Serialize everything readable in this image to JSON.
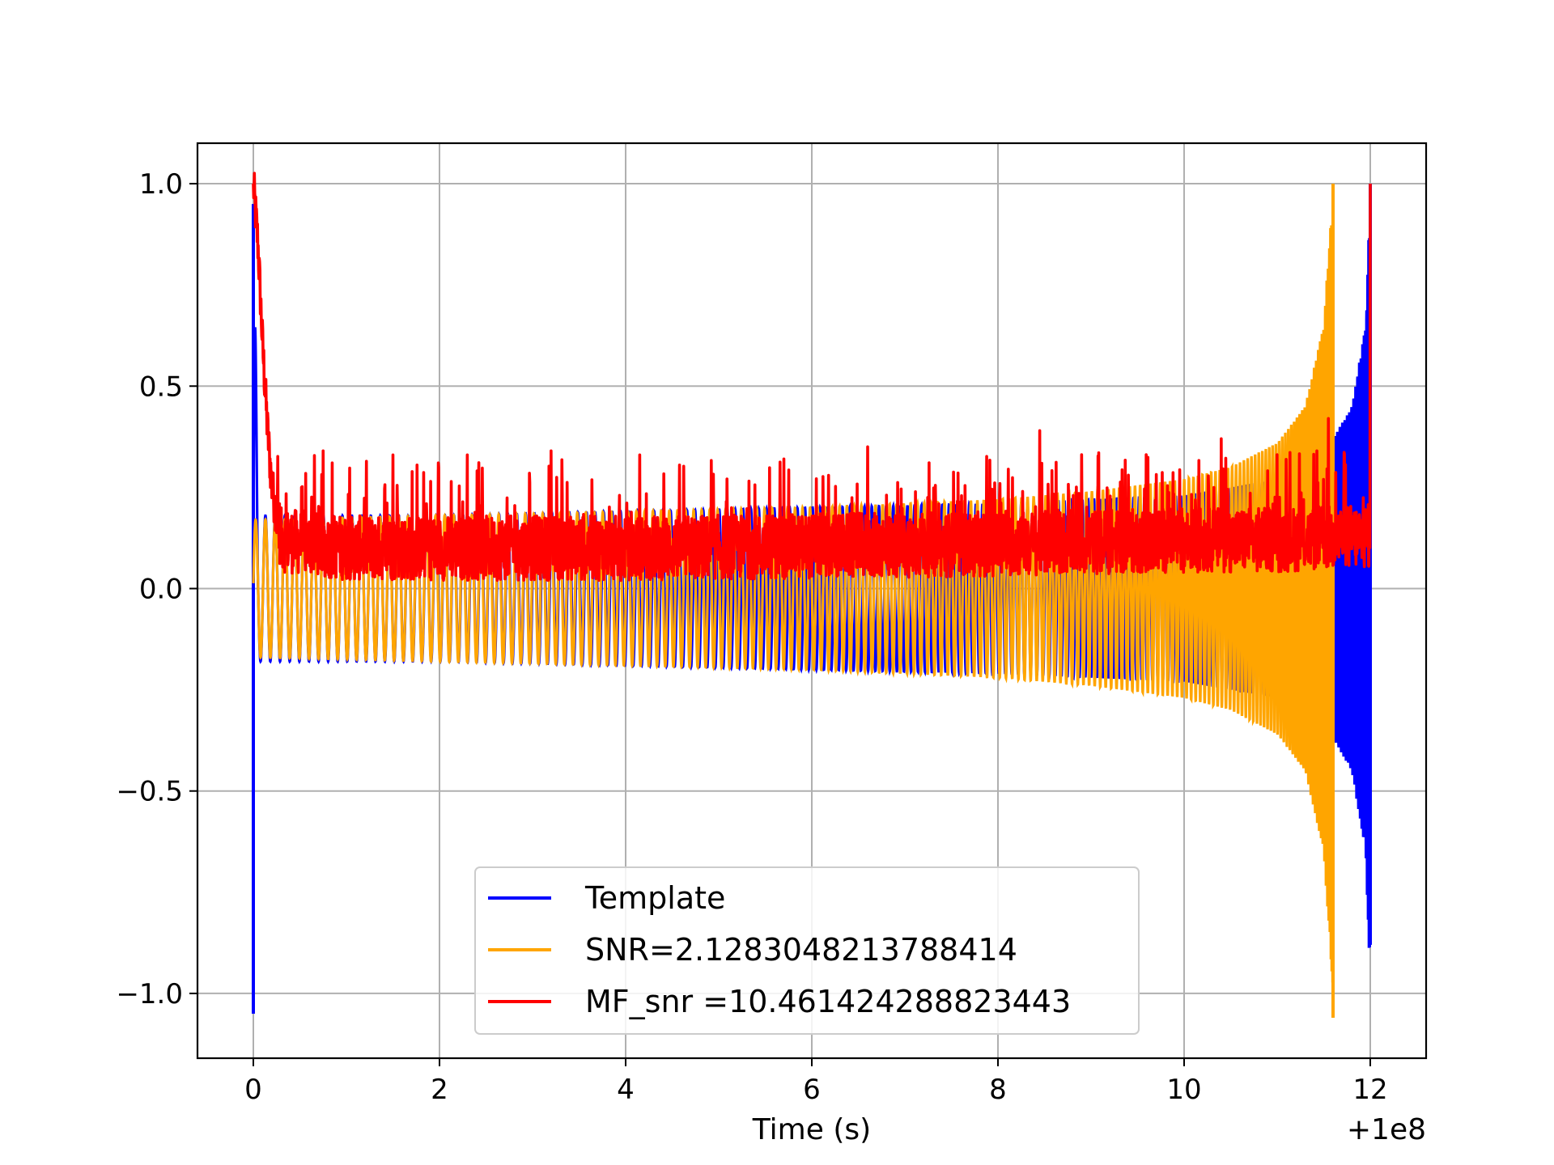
{
  "chart_data": {
    "type": "line",
    "title": "",
    "xlabel": "Time (s)",
    "ylabel": "",
    "x_offset_label": "+1e8",
    "xlim": [
      -0.6,
      12.6
    ],
    "ylim": [
      -1.16,
      1.1
    ],
    "xticks": [
      0,
      2,
      4,
      6,
      8,
      10,
      12
    ],
    "xtick_labels": [
      "0",
      "2",
      "4",
      "6",
      "8",
      "10",
      "12"
    ],
    "yticks": [
      -1.0,
      -0.5,
      0.0,
      0.5,
      1.0
    ],
    "ytick_labels": [
      "−1.0",
      "−0.5",
      "0.0",
      "0.5",
      "1.0"
    ],
    "grid": true,
    "legend_position": "lower-center",
    "series": [
      {
        "name": "Template",
        "color": "#0000ff",
        "description": "chirp waveform oscillating between about -0.2 and +0.2, growing to +/-1.0 near x=12",
        "x_range": [
          0,
          12
        ],
        "envelope_x": [
          0,
          0.05,
          2,
          4,
          6,
          8,
          10,
          11,
          11.6,
          11.8,
          11.95,
          12.0
        ],
        "envelope_y": [
          1.0,
          0.18,
          0.18,
          0.19,
          0.2,
          0.21,
          0.23,
          0.27,
          0.37,
          0.45,
          0.65,
          1.0
        ],
        "start_spike": [
          -1.05,
          0.95
        ],
        "end_spike": [
          -0.88,
          1.0
        ]
      },
      {
        "name": "SNR=2.1283048213788414",
        "color": "#ffa500",
        "description": "time-shifted chirp, merger near x=11.6",
        "x_range": [
          0,
          11.6
        ],
        "envelope_x": [
          0,
          0.05,
          2,
          4,
          6,
          8,
          9,
          10,
          10.5,
          11,
          11.3,
          11.5,
          11.6
        ],
        "envelope_y": [
          0.17,
          0.17,
          0.18,
          0.19,
          0.2,
          0.22,
          0.24,
          0.27,
          0.3,
          0.36,
          0.45,
          0.65,
          1.0
        ],
        "end_spike": [
          -1.06,
          1.0
        ]
      },
      {
        "name": "MF_snr =10.461424288823443",
        "color": "#ff0000",
        "description": "noisy matched-filter SNR trace, mostly between 0.0 and 0.35, peaks of 1.0 at x=0 and x=12",
        "x_range": [
          0,
          12
        ],
        "baseline_x": [
          0,
          0.05,
          0.1,
          0.15,
          0.2,
          0.3,
          1,
          4,
          8,
          10,
          11,
          12
        ],
        "baseline_y": [
          1.0,
          0.85,
          0.6,
          0.4,
          0.25,
          0.12,
          0.1,
          0.1,
          0.11,
          0.12,
          0.12,
          0.13
        ],
        "peaks": [
          {
            "x": 0.0,
            "y": 1.0
          },
          {
            "x": 12.0,
            "y": 1.0
          },
          {
            "x": 11.55,
            "y": 0.42
          },
          {
            "x": 10.4,
            "y": 0.37
          },
          {
            "x": 8.45,
            "y": 0.39
          },
          {
            "x": 6.6,
            "y": 0.35
          },
          {
            "x": 5.7,
            "y": 0.32
          },
          {
            "x": 4.15,
            "y": 0.33
          },
          {
            "x": 3.2,
            "y": 0.34
          },
          {
            "x": 2.3,
            "y": 0.33
          },
          {
            "x": 1.5,
            "y": 0.33
          },
          {
            "x": 0.75,
            "y": 0.34
          }
        ]
      }
    ]
  }
}
